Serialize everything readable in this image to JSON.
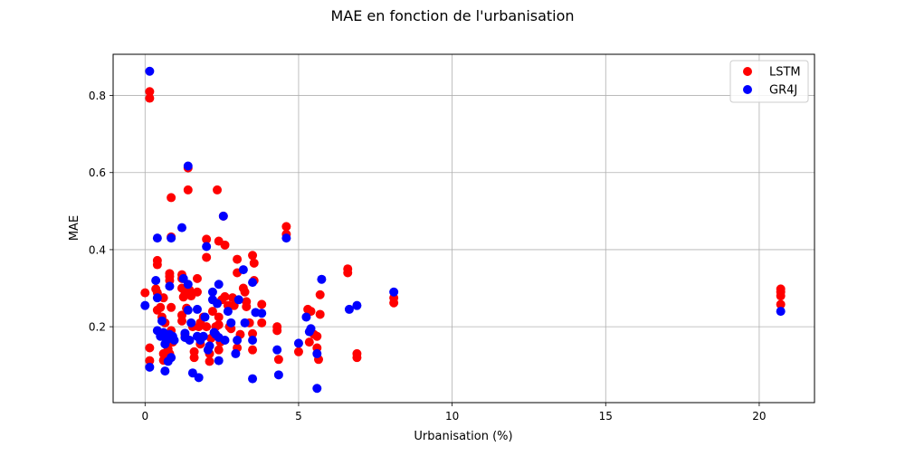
{
  "chart_data": {
    "type": "scatter",
    "title": "MAE en fonction de l'urbanisation",
    "xlabel": "Urbanisation (%)",
    "ylabel": "MAE",
    "xlim": [
      -1.04,
      21.8
    ],
    "ylim": [
      0.003,
      0.907
    ],
    "xticks": [
      0,
      5,
      10,
      15,
      20
    ],
    "yticks": [
      0.2,
      0.4,
      0.6,
      0.8
    ],
    "grid": true,
    "legend_position": "top-right",
    "series": [
      {
        "name": "LSTM",
        "color": "#ff0000",
        "points": [
          [
            0.0,
            0.288
          ],
          [
            0.15,
            0.81
          ],
          [
            0.15,
            0.793
          ],
          [
            0.15,
            0.145
          ],
          [
            0.15,
            0.112
          ],
          [
            0.35,
            0.298
          ],
          [
            0.4,
            0.372
          ],
          [
            0.4,
            0.361
          ],
          [
            0.4,
            0.243
          ],
          [
            0.4,
            0.288
          ],
          [
            0.5,
            0.25
          ],
          [
            0.55,
            0.18
          ],
          [
            0.55,
            0.225
          ],
          [
            0.6,
            0.275
          ],
          [
            0.6,
            0.13
          ],
          [
            0.6,
            0.113
          ],
          [
            0.65,
            0.21
          ],
          [
            0.7,
            0.17
          ],
          [
            0.75,
            0.142
          ],
          [
            0.8,
            0.338
          ],
          [
            0.8,
            0.33
          ],
          [
            0.8,
            0.32
          ],
          [
            0.8,
            0.13
          ],
          [
            0.85,
            0.535
          ],
          [
            0.85,
            0.433
          ],
          [
            0.85,
            0.25
          ],
          [
            0.85,
            0.19
          ],
          [
            0.9,
            0.16
          ],
          [
            1.2,
            0.335
          ],
          [
            1.2,
            0.325
          ],
          [
            1.2,
            0.3
          ],
          [
            1.2,
            0.23
          ],
          [
            1.2,
            0.215
          ],
          [
            1.25,
            0.277
          ],
          [
            1.3,
            0.285
          ],
          [
            1.3,
            0.18
          ],
          [
            1.35,
            0.248
          ],
          [
            1.4,
            0.612
          ],
          [
            1.4,
            0.555
          ],
          [
            1.45,
            0.295
          ],
          [
            1.5,
            0.28
          ],
          [
            1.55,
            0.2
          ],
          [
            1.6,
            0.135
          ],
          [
            1.6,
            0.12
          ],
          [
            1.7,
            0.325
          ],
          [
            1.7,
            0.29
          ],
          [
            1.75,
            0.2
          ],
          [
            1.8,
            0.21
          ],
          [
            1.8,
            0.155
          ],
          [
            1.9,
            0.225
          ],
          [
            2.0,
            0.427
          ],
          [
            2.0,
            0.38
          ],
          [
            2.0,
            0.2
          ],
          [
            2.1,
            0.11
          ],
          [
            2.1,
            0.13
          ],
          [
            2.15,
            0.17
          ],
          [
            2.2,
            0.24
          ],
          [
            2.25,
            0.185
          ],
          [
            2.3,
            0.2
          ],
          [
            2.35,
            0.555
          ],
          [
            2.4,
            0.422
          ],
          [
            2.4,
            0.225
          ],
          [
            2.4,
            0.205
          ],
          [
            2.4,
            0.14
          ],
          [
            2.45,
            0.16
          ],
          [
            2.5,
            0.27
          ],
          [
            2.55,
            0.487
          ],
          [
            2.6,
            0.412
          ],
          [
            2.6,
            0.278
          ],
          [
            2.7,
            0.255
          ],
          [
            2.75,
            0.2
          ],
          [
            2.8,
            0.195
          ],
          [
            2.85,
            0.275
          ],
          [
            2.9,
            0.255
          ],
          [
            3.0,
            0.375
          ],
          [
            3.0,
            0.34
          ],
          [
            3.0,
            0.145
          ],
          [
            3.1,
            0.18
          ],
          [
            3.2,
            0.3
          ],
          [
            3.25,
            0.29
          ],
          [
            3.3,
            0.265
          ],
          [
            3.3,
            0.252
          ],
          [
            3.4,
            0.21
          ],
          [
            3.5,
            0.385
          ],
          [
            3.55,
            0.365
          ],
          [
            3.55,
            0.32
          ],
          [
            3.5,
            0.182
          ],
          [
            3.5,
            0.14
          ],
          [
            3.8,
            0.258
          ],
          [
            3.8,
            0.21
          ],
          [
            4.3,
            0.2
          ],
          [
            4.3,
            0.19
          ],
          [
            4.35,
            0.115
          ],
          [
            4.6,
            0.46
          ],
          [
            4.6,
            0.44
          ],
          [
            5.0,
            0.135
          ],
          [
            5.3,
            0.245
          ],
          [
            5.35,
            0.16
          ],
          [
            5.4,
            0.24
          ],
          [
            5.5,
            0.18
          ],
          [
            5.6,
            0.175
          ],
          [
            5.6,
            0.145
          ],
          [
            5.65,
            0.115
          ],
          [
            5.7,
            0.283
          ],
          [
            5.7,
            0.232
          ],
          [
            6.6,
            0.35
          ],
          [
            6.6,
            0.34
          ],
          [
            6.9,
            0.13
          ],
          [
            6.9,
            0.12
          ],
          [
            8.1,
            0.275
          ],
          [
            8.1,
            0.262
          ],
          [
            20.7,
            0.298
          ],
          [
            20.7,
            0.29
          ],
          [
            20.7,
            0.28
          ],
          [
            20.7,
            0.258
          ]
        ]
      },
      {
        "name": "GR4J",
        "color": "#0000ff",
        "points": [
          [
            0.0,
            0.255
          ],
          [
            0.15,
            0.863
          ],
          [
            0.15,
            0.095
          ],
          [
            0.35,
            0.32
          ],
          [
            0.4,
            0.43
          ],
          [
            0.4,
            0.275
          ],
          [
            0.4,
            0.19
          ],
          [
            0.5,
            0.175
          ],
          [
            0.55,
            0.215
          ],
          [
            0.6,
            0.185
          ],
          [
            0.65,
            0.155
          ],
          [
            0.65,
            0.085
          ],
          [
            0.7,
            0.165
          ],
          [
            0.75,
            0.11
          ],
          [
            0.8,
            0.305
          ],
          [
            0.8,
            0.18
          ],
          [
            0.85,
            0.43
          ],
          [
            0.85,
            0.12
          ],
          [
            0.9,
            0.175
          ],
          [
            0.95,
            0.165
          ],
          [
            1.2,
            0.457
          ],
          [
            1.25,
            0.325
          ],
          [
            1.3,
            0.172
          ],
          [
            1.3,
            0.183
          ],
          [
            1.4,
            0.617
          ],
          [
            1.4,
            0.31
          ],
          [
            1.4,
            0.243
          ],
          [
            1.45,
            0.165
          ],
          [
            1.5,
            0.21
          ],
          [
            1.55,
            0.08
          ],
          [
            1.7,
            0.245
          ],
          [
            1.7,
            0.175
          ],
          [
            1.75,
            0.068
          ],
          [
            1.8,
            0.165
          ],
          [
            1.9,
            0.175
          ],
          [
            1.95,
            0.225
          ],
          [
            2.0,
            0.408
          ],
          [
            2.05,
            0.14
          ],
          [
            2.1,
            0.15
          ],
          [
            2.2,
            0.29
          ],
          [
            2.2,
            0.27
          ],
          [
            2.25,
            0.185
          ],
          [
            2.3,
            0.18
          ],
          [
            2.35,
            0.26
          ],
          [
            2.4,
            0.31
          ],
          [
            2.4,
            0.172
          ],
          [
            2.4,
            0.112
          ],
          [
            2.55,
            0.487
          ],
          [
            2.6,
            0.165
          ],
          [
            2.7,
            0.24
          ],
          [
            2.8,
            0.21
          ],
          [
            2.95,
            0.13
          ],
          [
            3.0,
            0.165
          ],
          [
            3.05,
            0.27
          ],
          [
            3.2,
            0.348
          ],
          [
            3.25,
            0.21
          ],
          [
            3.5,
            0.315
          ],
          [
            3.5,
            0.165
          ],
          [
            3.5,
            0.065
          ],
          [
            3.6,
            0.237
          ],
          [
            3.8,
            0.235
          ],
          [
            4.3,
            0.14
          ],
          [
            4.35,
            0.075
          ],
          [
            4.6,
            0.43
          ],
          [
            5.0,
            0.157
          ],
          [
            5.25,
            0.225
          ],
          [
            5.35,
            0.187
          ],
          [
            5.4,
            0.195
          ],
          [
            5.6,
            0.13
          ],
          [
            5.6,
            0.04
          ],
          [
            5.75,
            0.323
          ],
          [
            6.65,
            0.245
          ],
          [
            6.9,
            0.255
          ],
          [
            8.1,
            0.29
          ],
          [
            20.7,
            0.24
          ]
        ]
      }
    ]
  }
}
